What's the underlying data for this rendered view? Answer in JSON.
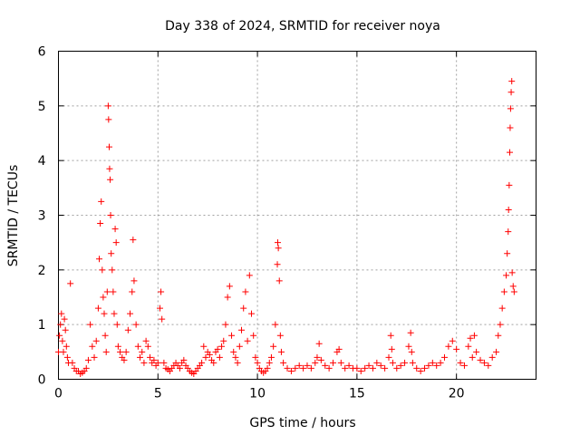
{
  "chart_data": {
    "type": "scatter",
    "title": "Day 338 of 2024, SRMTID for receiver noya",
    "xlabel": "GPS time / hours",
    "ylabel": "SRMTID / TECUs",
    "xlim": [
      0,
      24
    ],
    "ylim": [
      0,
      6
    ],
    "xticks": [
      0,
      5,
      10,
      15,
      20
    ],
    "yticks": [
      0,
      1,
      2,
      3,
      4,
      5,
      6
    ],
    "grid": true,
    "marker": "+",
    "color": "#ff0000",
    "series": [
      {
        "name": "SRMTID",
        "points": [
          [
            0.0,
            0.5
          ],
          [
            0.05,
            0.8
          ],
          [
            0.1,
            1.0
          ],
          [
            0.15,
            1.2
          ],
          [
            0.2,
            0.7
          ],
          [
            0.25,
            0.5
          ],
          [
            0.3,
            1.1
          ],
          [
            0.35,
            0.9
          ],
          [
            0.4,
            0.6
          ],
          [
            0.45,
            0.4
          ],
          [
            0.5,
            0.3
          ],
          [
            0.6,
            1.75
          ],
          [
            0.7,
            0.3
          ],
          [
            0.8,
            0.2
          ],
          [
            0.9,
            0.15
          ],
          [
            1.0,
            0.15
          ],
          [
            1.1,
            0.1
          ],
          [
            1.2,
            0.12
          ],
          [
            1.3,
            0.15
          ],
          [
            1.4,
            0.2
          ],
          [
            1.5,
            0.35
          ],
          [
            1.6,
            1.0
          ],
          [
            1.7,
            0.6
          ],
          [
            1.8,
            0.4
          ],
          [
            1.9,
            0.7
          ],
          [
            2.0,
            1.3
          ],
          [
            2.05,
            2.2
          ],
          [
            2.1,
            2.85
          ],
          [
            2.15,
            3.25
          ],
          [
            2.2,
            2.0
          ],
          [
            2.25,
            1.5
          ],
          [
            2.3,
            1.2
          ],
          [
            2.35,
            0.8
          ],
          [
            2.4,
            0.5
          ],
          [
            2.45,
            1.6
          ],
          [
            2.5,
            5.0
          ],
          [
            2.52,
            4.75
          ],
          [
            2.55,
            4.25
          ],
          [
            2.57,
            3.85
          ],
          [
            2.6,
            3.65
          ],
          [
            2.62,
            3.0
          ],
          [
            2.65,
            2.3
          ],
          [
            2.7,
            2.0
          ],
          [
            2.75,
            1.6
          ],
          [
            2.8,
            1.2
          ],
          [
            2.85,
            2.75
          ],
          [
            2.9,
            2.5
          ],
          [
            2.95,
            1.0
          ],
          [
            3.0,
            0.6
          ],
          [
            3.1,
            0.5
          ],
          [
            3.2,
            0.4
          ],
          [
            3.3,
            0.35
          ],
          [
            3.4,
            0.5
          ],
          [
            3.5,
            0.9
          ],
          [
            3.6,
            1.2
          ],
          [
            3.7,
            1.6
          ],
          [
            3.75,
            2.55
          ],
          [
            3.8,
            1.8
          ],
          [
            3.9,
            1.0
          ],
          [
            4.0,
            0.6
          ],
          [
            4.1,
            0.4
          ],
          [
            4.2,
            0.5
          ],
          [
            4.3,
            0.3
          ],
          [
            4.4,
            0.7
          ],
          [
            4.5,
            0.6
          ],
          [
            4.6,
            0.4
          ],
          [
            4.7,
            0.3
          ],
          [
            4.8,
            0.35
          ],
          [
            4.9,
            0.25
          ],
          [
            5.0,
            0.3
          ],
          [
            5.1,
            1.3
          ],
          [
            5.15,
            1.6
          ],
          [
            5.2,
            1.1
          ],
          [
            5.3,
            0.3
          ],
          [
            5.4,
            0.2
          ],
          [
            5.5,
            0.18
          ],
          [
            5.6,
            0.15
          ],
          [
            5.7,
            0.2
          ],
          [
            5.8,
            0.25
          ],
          [
            5.9,
            0.3
          ],
          [
            6.0,
            0.25
          ],
          [
            6.1,
            0.2
          ],
          [
            6.2,
            0.3
          ],
          [
            6.3,
            0.35
          ],
          [
            6.4,
            0.25
          ],
          [
            6.5,
            0.2
          ],
          [
            6.6,
            0.15
          ],
          [
            6.7,
            0.12
          ],
          [
            6.8,
            0.1
          ],
          [
            6.9,
            0.15
          ],
          [
            7.0,
            0.2
          ],
          [
            7.1,
            0.25
          ],
          [
            7.2,
            0.3
          ],
          [
            7.3,
            0.6
          ],
          [
            7.4,
            0.4
          ],
          [
            7.5,
            0.5
          ],
          [
            7.6,
            0.45
          ],
          [
            7.7,
            0.35
          ],
          [
            7.8,
            0.3
          ],
          [
            7.9,
            0.5
          ],
          [
            8.0,
            0.55
          ],
          [
            8.1,
            0.4
          ],
          [
            8.2,
            0.6
          ],
          [
            8.3,
            0.7
          ],
          [
            8.4,
            1.0
          ],
          [
            8.5,
            1.5
          ],
          [
            8.6,
            1.7
          ],
          [
            8.7,
            0.8
          ],
          [
            8.8,
            0.5
          ],
          [
            8.9,
            0.4
          ],
          [
            9.0,
            0.3
          ],
          [
            9.1,
            0.6
          ],
          [
            9.2,
            0.9
          ],
          [
            9.3,
            1.3
          ],
          [
            9.4,
            1.6
          ],
          [
            9.5,
            0.7
          ],
          [
            9.6,
            1.9
          ],
          [
            9.7,
            1.2
          ],
          [
            9.8,
            0.8
          ],
          [
            9.9,
            0.4
          ],
          [
            10.0,
            0.3
          ],
          [
            10.1,
            0.2
          ],
          [
            10.2,
            0.15
          ],
          [
            10.3,
            0.12
          ],
          [
            10.4,
            0.15
          ],
          [
            10.5,
            0.2
          ],
          [
            10.6,
            0.3
          ],
          [
            10.7,
            0.4
          ],
          [
            10.8,
            0.6
          ],
          [
            10.9,
            1.0
          ],
          [
            11.0,
            2.1
          ],
          [
            11.02,
            2.5
          ],
          [
            11.05,
            2.4
          ],
          [
            11.1,
            1.8
          ],
          [
            11.15,
            0.8
          ],
          [
            11.2,
            0.5
          ],
          [
            11.3,
            0.3
          ],
          [
            11.5,
            0.2
          ],
          [
            11.7,
            0.15
          ],
          [
            11.9,
            0.2
          ],
          [
            12.1,
            0.25
          ],
          [
            12.3,
            0.2
          ],
          [
            12.5,
            0.25
          ],
          [
            12.7,
            0.2
          ],
          [
            12.9,
            0.3
          ],
          [
            13.0,
            0.4
          ],
          [
            13.1,
            0.65
          ],
          [
            13.2,
            0.35
          ],
          [
            13.4,
            0.25
          ],
          [
            13.6,
            0.2
          ],
          [
            13.8,
            0.3
          ],
          [
            14.0,
            0.5
          ],
          [
            14.1,
            0.55
          ],
          [
            14.2,
            0.3
          ],
          [
            14.4,
            0.2
          ],
          [
            14.6,
            0.25
          ],
          [
            14.8,
            0.2
          ],
          [
            15.0,
            0.2
          ],
          [
            15.2,
            0.15
          ],
          [
            15.4,
            0.2
          ],
          [
            15.6,
            0.25
          ],
          [
            15.8,
            0.2
          ],
          [
            16.0,
            0.3
          ],
          [
            16.2,
            0.25
          ],
          [
            16.4,
            0.2
          ],
          [
            16.6,
            0.4
          ],
          [
            16.7,
            0.8
          ],
          [
            16.75,
            0.55
          ],
          [
            16.8,
            0.3
          ],
          [
            17.0,
            0.2
          ],
          [
            17.2,
            0.25
          ],
          [
            17.4,
            0.3
          ],
          [
            17.6,
            0.6
          ],
          [
            17.7,
            0.85
          ],
          [
            17.75,
            0.5
          ],
          [
            17.8,
            0.3
          ],
          [
            18.0,
            0.2
          ],
          [
            18.2,
            0.15
          ],
          [
            18.4,
            0.2
          ],
          [
            18.6,
            0.25
          ],
          [
            18.8,
            0.3
          ],
          [
            19.0,
            0.25
          ],
          [
            19.2,
            0.3
          ],
          [
            19.4,
            0.4
          ],
          [
            19.6,
            0.6
          ],
          [
            19.8,
            0.7
          ],
          [
            20.0,
            0.55
          ],
          [
            20.2,
            0.3
          ],
          [
            20.4,
            0.25
          ],
          [
            20.6,
            0.6
          ],
          [
            20.7,
            0.75
          ],
          [
            20.8,
            0.4
          ],
          [
            20.9,
            0.8
          ],
          [
            21.0,
            0.5
          ],
          [
            21.2,
            0.35
          ],
          [
            21.4,
            0.3
          ],
          [
            21.6,
            0.25
          ],
          [
            21.8,
            0.4
          ],
          [
            22.0,
            0.5
          ],
          [
            22.1,
            0.8
          ],
          [
            22.2,
            1.0
          ],
          [
            22.3,
            1.3
          ],
          [
            22.4,
            1.6
          ],
          [
            22.5,
            1.9
          ],
          [
            22.55,
            2.3
          ],
          [
            22.6,
            2.7
          ],
          [
            22.62,
            3.1
          ],
          [
            22.65,
            3.55
          ],
          [
            22.68,
            4.15
          ],
          [
            22.7,
            4.6
          ],
          [
            22.72,
            4.95
          ],
          [
            22.75,
            5.25
          ],
          [
            22.78,
            5.45
          ],
          [
            22.8,
            1.95
          ],
          [
            22.85,
            1.7
          ],
          [
            22.9,
            1.6
          ]
        ]
      }
    ]
  }
}
